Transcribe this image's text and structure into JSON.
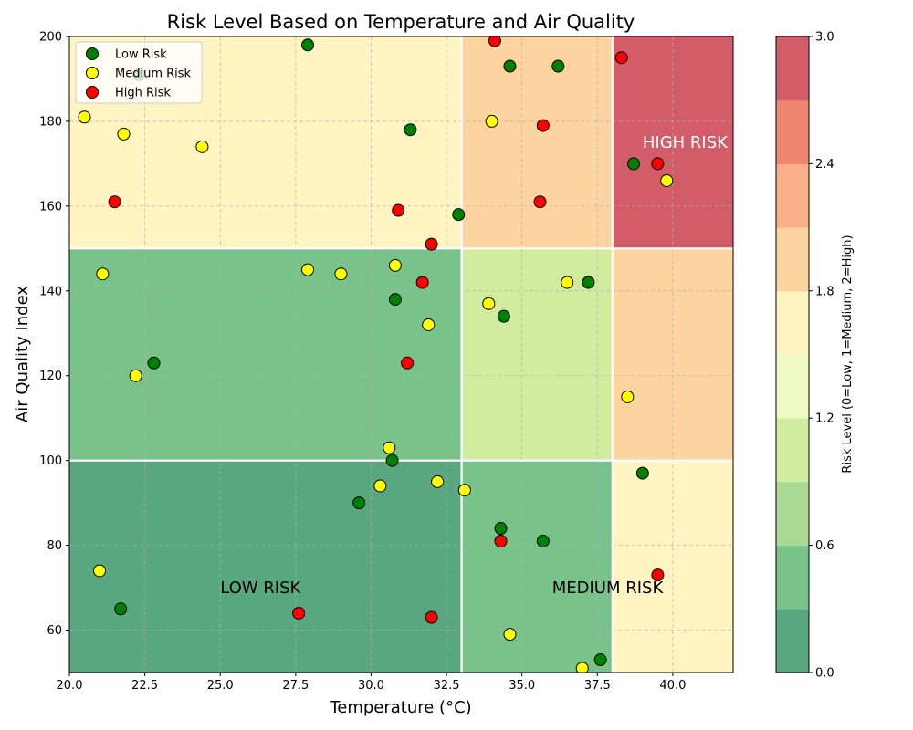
{
  "chart_data": {
    "type": "scatter",
    "title": "Risk Level Based on Temperature and Air Quality",
    "xlabel": "Temperature (°C)",
    "ylabel": "Air Quality Index",
    "xlim": [
      20,
      42
    ],
    "ylim": [
      50,
      200
    ],
    "x_ticks": [
      "20.0",
      "22.5",
      "25.0",
      "27.5",
      "30.0",
      "32.5",
      "35.0",
      "37.5",
      "40.0"
    ],
    "y_ticks": [
      "60",
      "80",
      "100",
      "120",
      "140",
      "160",
      "180",
      "200"
    ],
    "grid": true,
    "legend_placement": "top-left",
    "background_regions": [
      {
        "x": [
          20,
          33
        ],
        "y": [
          50,
          100
        ],
        "level": 0.0
      },
      {
        "x": [
          33,
          38
        ],
        "y": [
          50,
          100
        ],
        "level": 0.5
      },
      {
        "x": [
          38,
          42
        ],
        "y": [
          50,
          100
        ],
        "level": 1.5
      },
      {
        "x": [
          20,
          33
        ],
        "y": [
          100,
          150
        ],
        "level": 0.5
      },
      {
        "x": [
          33,
          38
        ],
        "y": [
          100,
          150
        ],
        "level": 1.0
      },
      {
        "x": [
          38,
          42
        ],
        "y": [
          100,
          150
        ],
        "level": 2.0
      },
      {
        "x": [
          20,
          33
        ],
        "y": [
          150,
          200
        ],
        "level": 1.5
      },
      {
        "x": [
          33,
          38
        ],
        "y": [
          150,
          200
        ],
        "level": 2.0
      },
      {
        "x": [
          38,
          42
        ],
        "y": [
          150,
          200
        ],
        "level": 3.0
      }
    ],
    "region_labels": [
      {
        "text": "LOW RISK",
        "x": 25.0,
        "y": 70,
        "color": "#000000"
      },
      {
        "text": "MEDIUM RISK",
        "x": 36.0,
        "y": 70,
        "color": "#000000"
      },
      {
        "text": "HIGH RISK",
        "x": 39.0,
        "y": 175,
        "color": "#ffffff"
      }
    ],
    "series": [
      {
        "name": "Low Risk",
        "color": "#008000",
        "points": [
          [
            22.3,
            191
          ],
          [
            27.9,
            198
          ],
          [
            34.6,
            193
          ],
          [
            36.2,
            193
          ],
          [
            31.3,
            178
          ],
          [
            38.7,
            170
          ],
          [
            32.9,
            158
          ],
          [
            37.2,
            142
          ],
          [
            30.8,
            138
          ],
          [
            34.4,
            134
          ],
          [
            22.8,
            123
          ],
          [
            30.7,
            100
          ],
          [
            39.0,
            97
          ],
          [
            29.6,
            90
          ],
          [
            34.3,
            84
          ],
          [
            35.7,
            81
          ],
          [
            21.7,
            65
          ],
          [
            37.6,
            53
          ]
        ]
      },
      {
        "name": "Medium Risk",
        "color": "#ffff00",
        "points": [
          [
            20.5,
            181
          ],
          [
            21.8,
            177
          ],
          [
            24.4,
            174
          ],
          [
            34.0,
            180
          ],
          [
            39.8,
            166
          ],
          [
            21.1,
            144
          ],
          [
            27.9,
            145
          ],
          [
            29.0,
            144
          ],
          [
            30.8,
            146
          ],
          [
            36.5,
            142
          ],
          [
            33.9,
            137
          ],
          [
            31.9,
            132
          ],
          [
            22.2,
            120
          ],
          [
            38.5,
            115
          ],
          [
            30.6,
            103
          ],
          [
            30.3,
            94
          ],
          [
            32.2,
            95
          ],
          [
            33.1,
            93
          ],
          [
            21.0,
            74
          ],
          [
            34.6,
            59
          ],
          [
            37.0,
            51
          ]
        ]
      },
      {
        "name": "High Risk",
        "color": "#ff0000",
        "points": [
          [
            34.1,
            199
          ],
          [
            38.3,
            195
          ],
          [
            35.7,
            179
          ],
          [
            39.5,
            170
          ],
          [
            21.5,
            161
          ],
          [
            35.6,
            161
          ],
          [
            30.9,
            159
          ],
          [
            32.0,
            151
          ],
          [
            31.7,
            142
          ],
          [
            31.2,
            123
          ],
          [
            34.3,
            81
          ],
          [
            39.5,
            73
          ],
          [
            27.6,
            64
          ],
          [
            32.0,
            63
          ]
        ]
      }
    ],
    "colorbar": {
      "label": "Risk Level (0=Low, 1=Medium, 2=High)",
      "range": [
        0,
        3
      ],
      "ticks": [
        "0.0",
        "0.6",
        "1.2",
        "1.8",
        "2.4",
        "3.0"
      ],
      "bands": [
        "#58a77f",
        "#79c38a",
        "#a9d994",
        "#d2ec9f",
        "#eff9c4",
        "#fff4c2",
        "#fdd49f",
        "#fbaf87",
        "#ef866e",
        "#d35c69"
      ]
    }
  }
}
